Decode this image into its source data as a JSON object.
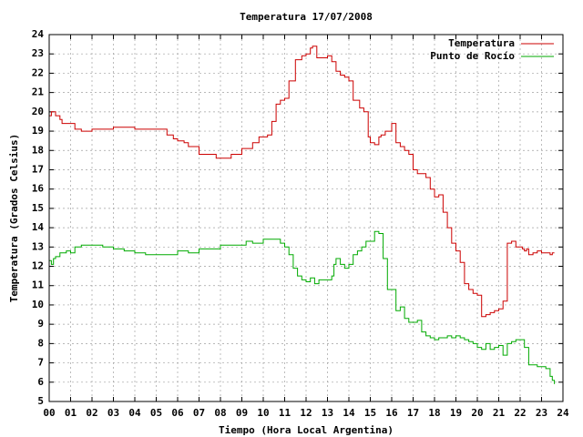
{
  "chart_data": {
    "type": "line",
    "title": "Temperatura 17/07/2008",
    "xlabel": "Tiempo (Hora Local Argentina)",
    "ylabel": "Temperatura (Grados Celsius)",
    "xlim": [
      0,
      24
    ],
    "ylim": [
      5,
      24
    ],
    "grid": true,
    "legend_position": "top-right",
    "x_ticks": [
      "00",
      "01",
      "02",
      "03",
      "04",
      "05",
      "06",
      "07",
      "08",
      "09",
      "10",
      "11",
      "12",
      "13",
      "14",
      "15",
      "16",
      "17",
      "18",
      "19",
      "20",
      "21",
      "22",
      "23",
      "24"
    ],
    "y_ticks": [
      5,
      6,
      7,
      8,
      9,
      10,
      11,
      12,
      13,
      14,
      15,
      16,
      17,
      18,
      19,
      20,
      21,
      22,
      23,
      24
    ],
    "series": [
      {
        "name": "Temperatura",
        "color": "#cc0000",
        "x": [
          0,
          0.1,
          0.3,
          0.5,
          0.6,
          1.0,
          1.2,
          1.5,
          2.0,
          2.5,
          3.0,
          3.5,
          4.0,
          4.5,
          5.0,
          5.5,
          5.8,
          6.0,
          6.3,
          6.5,
          7.0,
          7.5,
          7.8,
          8.0,
          8.5,
          9.0,
          9.5,
          9.8,
          10.0,
          10.2,
          10.4,
          10.6,
          10.8,
          11.0,
          11.2,
          11.5,
          11.8,
          12.0,
          12.2,
          12.3,
          12.5,
          12.8,
          13.0,
          13.2,
          13.4,
          13.6,
          13.8,
          14.0,
          14.2,
          14.5,
          14.7,
          14.9,
          15.0,
          15.2,
          15.4,
          15.5,
          15.7,
          16.0,
          16.2,
          16.4,
          16.6,
          16.8,
          17.0,
          17.2,
          17.4,
          17.6,
          17.8,
          18.0,
          18.2,
          18.4,
          18.6,
          18.8,
          19.0,
          19.2,
          19.4,
          19.6,
          19.8,
          20.0,
          20.2,
          20.4,
          20.6,
          20.8,
          21.0,
          21.2,
          21.4,
          21.6,
          21.8,
          22.0,
          22.1,
          22.2,
          22.3,
          22.4,
          22.6,
          22.8,
          23.0,
          23.2,
          23.4,
          23.5,
          23.6
        ],
        "y": [
          19.8,
          20.0,
          19.8,
          19.6,
          19.4,
          19.4,
          19.1,
          19.0,
          19.1,
          19.1,
          19.2,
          19.2,
          19.1,
          19.1,
          19.1,
          18.8,
          18.6,
          18.5,
          18.4,
          18.2,
          17.8,
          17.8,
          17.6,
          17.6,
          17.8,
          18.1,
          18.4,
          18.7,
          18.7,
          18.8,
          19.5,
          20.4,
          20.6,
          20.7,
          21.6,
          22.7,
          22.9,
          23.0,
          23.3,
          23.4,
          22.8,
          22.8,
          22.9,
          22.6,
          22.1,
          21.9,
          21.8,
          21.6,
          20.6,
          20.2,
          20.0,
          18.7,
          18.4,
          18.3,
          18.7,
          18.8,
          19.0,
          19.4,
          18.4,
          18.2,
          18.0,
          17.8,
          17.0,
          16.8,
          16.8,
          16.6,
          16.0,
          15.6,
          15.7,
          14.8,
          14.0,
          13.2,
          12.8,
          12.2,
          11.1,
          10.8,
          10.6,
          10.5,
          9.4,
          9.5,
          9.6,
          9.7,
          9.8,
          10.2,
          13.2,
          13.3,
          13.0,
          13.0,
          12.9,
          12.8,
          12.9,
          12.6,
          12.7,
          12.8,
          12.7,
          12.7,
          12.6,
          12.7,
          12.7
        ],
        "_note": ""
      },
      {
        "name": "Punto de Rocío",
        "color": "#00aa00",
        "x": [
          0,
          0.1,
          0.2,
          0.3,
          0.5,
          0.8,
          1.0,
          1.2,
          1.5,
          2.0,
          2.5,
          3.0,
          3.5,
          4.0,
          4.5,
          5.0,
          5.5,
          6.0,
          6.5,
          7.0,
          7.5,
          8.0,
          8.5,
          9.0,
          9.2,
          9.5,
          10.0,
          10.3,
          10.6,
          10.8,
          11.0,
          11.2,
          11.4,
          11.6,
          11.8,
          12.0,
          12.2,
          12.4,
          12.6,
          12.8,
          13.0,
          13.2,
          13.3,
          13.4,
          13.6,
          13.8,
          14.0,
          14.2,
          14.4,
          14.6,
          14.8,
          15.0,
          15.2,
          15.4,
          15.6,
          15.8,
          16.0,
          16.1,
          16.2,
          16.4,
          16.6,
          16.8,
          17.0,
          17.2,
          17.4,
          17.6,
          17.8,
          18.0,
          18.2,
          18.4,
          18.6,
          18.8,
          19.0,
          19.2,
          19.4,
          19.6,
          19.8,
          20.0,
          20.2,
          20.4,
          20.6,
          20.8,
          21.0,
          21.2,
          21.4,
          21.6,
          21.8,
          22.0,
          22.2,
          22.4,
          22.6,
          22.8,
          23.0,
          23.2,
          23.4,
          23.5,
          23.6
        ],
        "y": [
          12.3,
          12.1,
          12.4,
          12.5,
          12.7,
          12.8,
          12.7,
          13.0,
          13.1,
          13.1,
          13.0,
          12.9,
          12.8,
          12.7,
          12.6,
          12.6,
          12.6,
          12.8,
          12.7,
          12.9,
          12.9,
          13.1,
          13.1,
          13.1,
          13.3,
          13.2,
          13.4,
          13.4,
          13.4,
          13.2,
          13.0,
          12.6,
          11.9,
          11.5,
          11.3,
          11.2,
          11.4,
          11.1,
          11.3,
          11.3,
          11.3,
          11.5,
          12.1,
          12.4,
          12.1,
          11.9,
          12.1,
          12.6,
          12.8,
          13.0,
          13.3,
          13.3,
          13.8,
          13.7,
          12.4,
          10.8,
          10.8,
          10.8,
          9.7,
          9.9,
          9.3,
          9.1,
          9.1,
          9.2,
          8.6,
          8.4,
          8.3,
          8.2,
          8.3,
          8.3,
          8.4,
          8.3,
          8.4,
          8.3,
          8.2,
          8.1,
          8.0,
          7.8,
          7.7,
          8.0,
          7.7,
          7.8,
          7.9,
          7.4,
          8.0,
          8.1,
          8.2,
          8.2,
          7.8,
          6.9,
          6.9,
          6.8,
          6.8,
          6.7,
          6.3,
          6.1,
          5.9
        ],
        "_note": ""
      }
    ]
  }
}
